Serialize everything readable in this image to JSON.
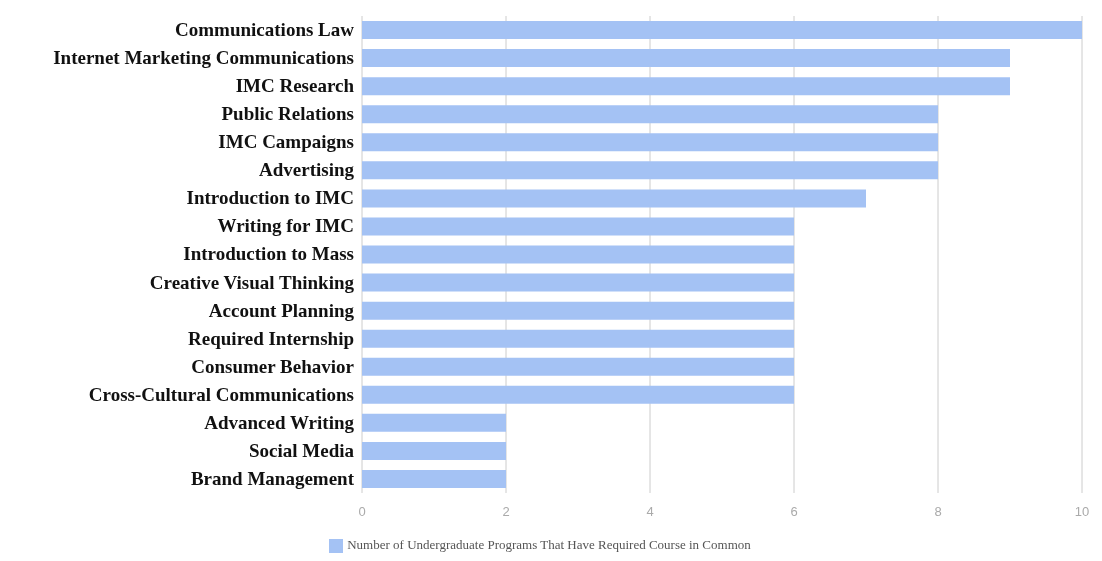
{
  "chart_data": {
    "type": "bar",
    "orientation": "horizontal",
    "categories": [
      "Communications Law",
      "Internet Marketing Communications",
      "IMC Research",
      "Public Relations",
      "IMC Campaigns",
      "Advertising",
      "Introduction to IMC",
      "Writing for IMC",
      "Introduction to Mass",
      "Creative Visual Thinking",
      "Account Planning",
      "Required Internship",
      "Consumer Behavior",
      "Cross-Cultural Communications",
      "Advanced Writing",
      "Social Media",
      "Brand Management"
    ],
    "series": [
      {
        "name": "Number of Undergraduate Programs That Have Required Course in Common",
        "color": "#a4c2f4",
        "values": [
          10,
          9,
          9,
          8,
          8,
          8,
          7,
          6,
          6,
          6,
          6,
          6,
          6,
          6,
          2,
          2,
          2
        ]
      }
    ],
    "xlim": [
      0,
      10
    ],
    "xticks": [
      0,
      2,
      4,
      6,
      8,
      10
    ],
    "grid": "x",
    "legend": "bottom"
  }
}
